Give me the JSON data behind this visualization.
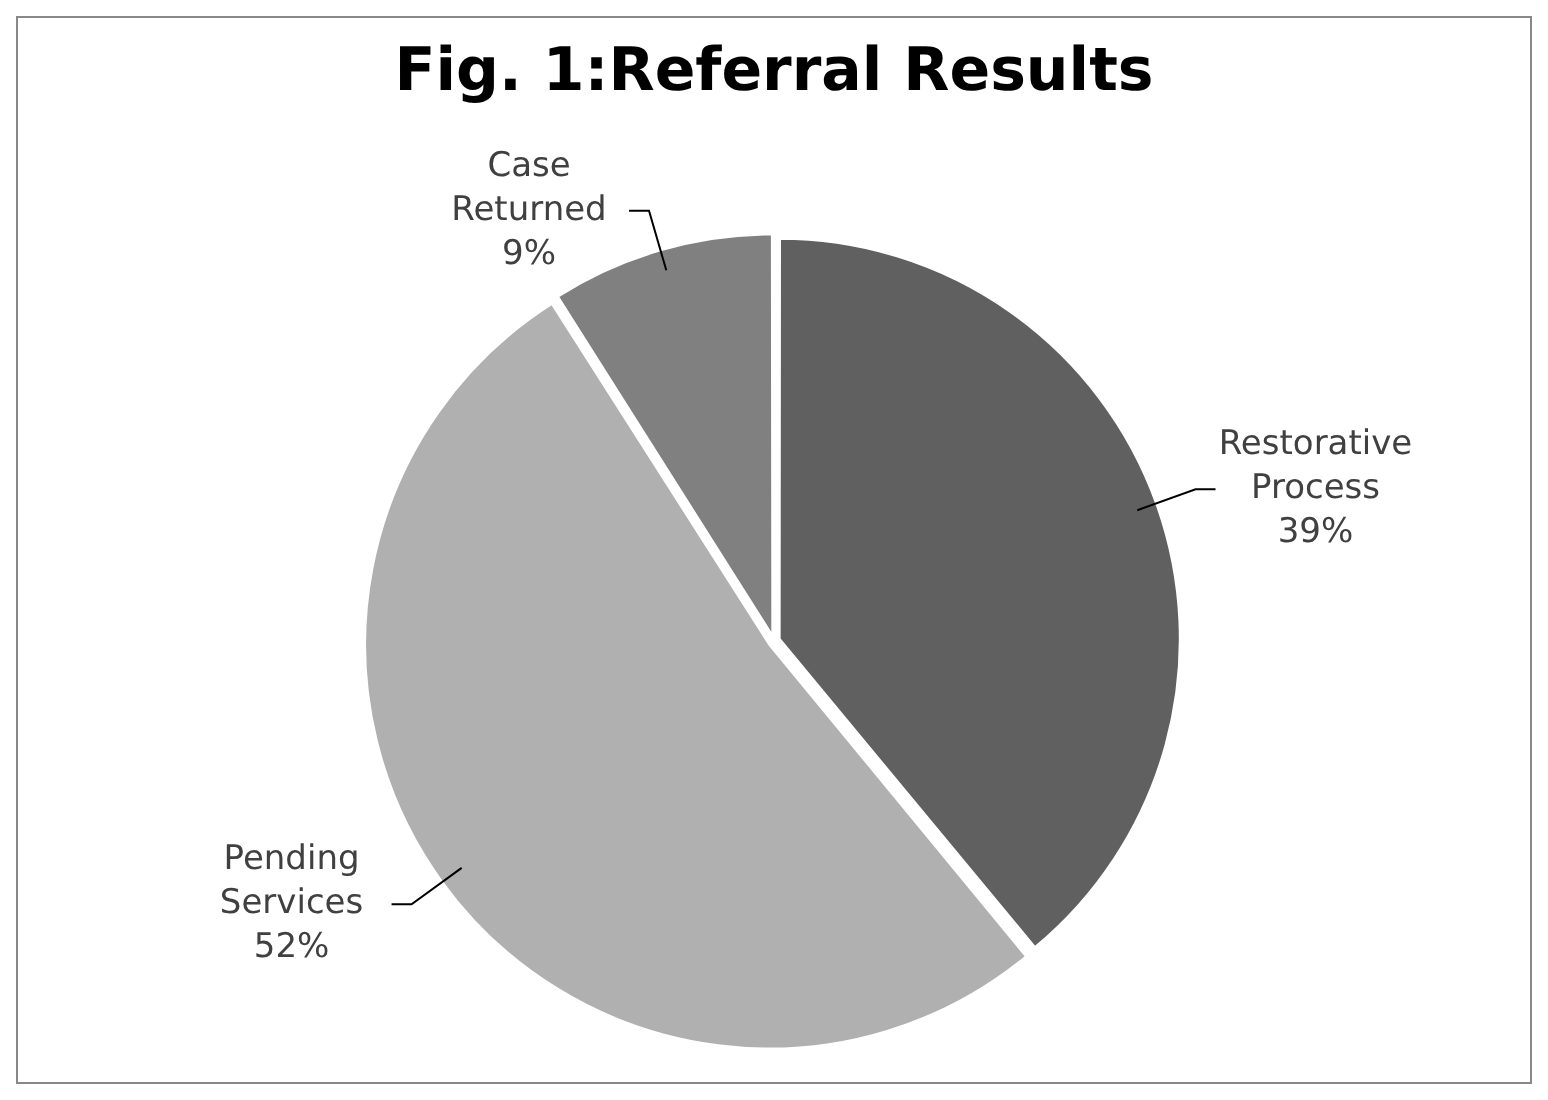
{
  "chart_data": {
    "type": "pie",
    "title": "Fig. 1:Referral Results",
    "categories": [
      "Restorative Process",
      "Pending Services",
      "Case Returned"
    ],
    "values": [
      39,
      52,
      9
    ],
    "value_labels": [
      "39%",
      "52%",
      "9%"
    ],
    "colors": [
      "#606060",
      "#b0b0b0",
      "#808080"
    ],
    "legend": false
  }
}
